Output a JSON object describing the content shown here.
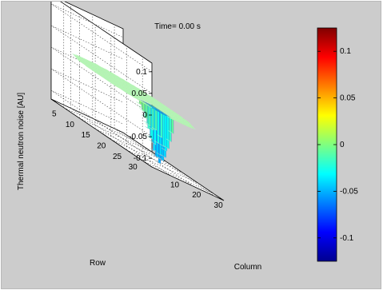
{
  "chart_data": {
    "type": "surface3d",
    "title": "Time= 0.00 s",
    "xlabel": "Column",
    "ylabel": "Row",
    "zlabel": "Thermal neutron noise [AU]",
    "x_ticks": [
      "10",
      "20",
      "30"
    ],
    "y_ticks": [
      "5",
      "10",
      "15",
      "20",
      "25",
      "30"
    ],
    "z_ticks": [
      "0.1",
      "0.05",
      "0",
      "-0.05",
      "-0.1"
    ],
    "xlim": [
      1,
      34
    ],
    "ylim": [
      1,
      33
    ],
    "zlim": [
      -0.12,
      0.12
    ],
    "grid": true,
    "core_map": {
      "description_values": "fuel assemblies on a roughly circular core, value ~0.01 everywhere except a localized negative dip",
      "baseline_value": 0.01,
      "dip": {
        "rows": [
          24,
          30
        ],
        "columns": [
          8,
          14
        ],
        "min_value": -0.11
      }
    },
    "colorbar": {
      "colormap": "jet",
      "range": [
        -0.125,
        0.125
      ],
      "ticks": [
        "0.1",
        "0.05",
        "0",
        "-0.05",
        "-0.1"
      ],
      "tick_values": [
        0.1,
        0.05,
        0,
        -0.05,
        -0.1
      ]
    }
  }
}
